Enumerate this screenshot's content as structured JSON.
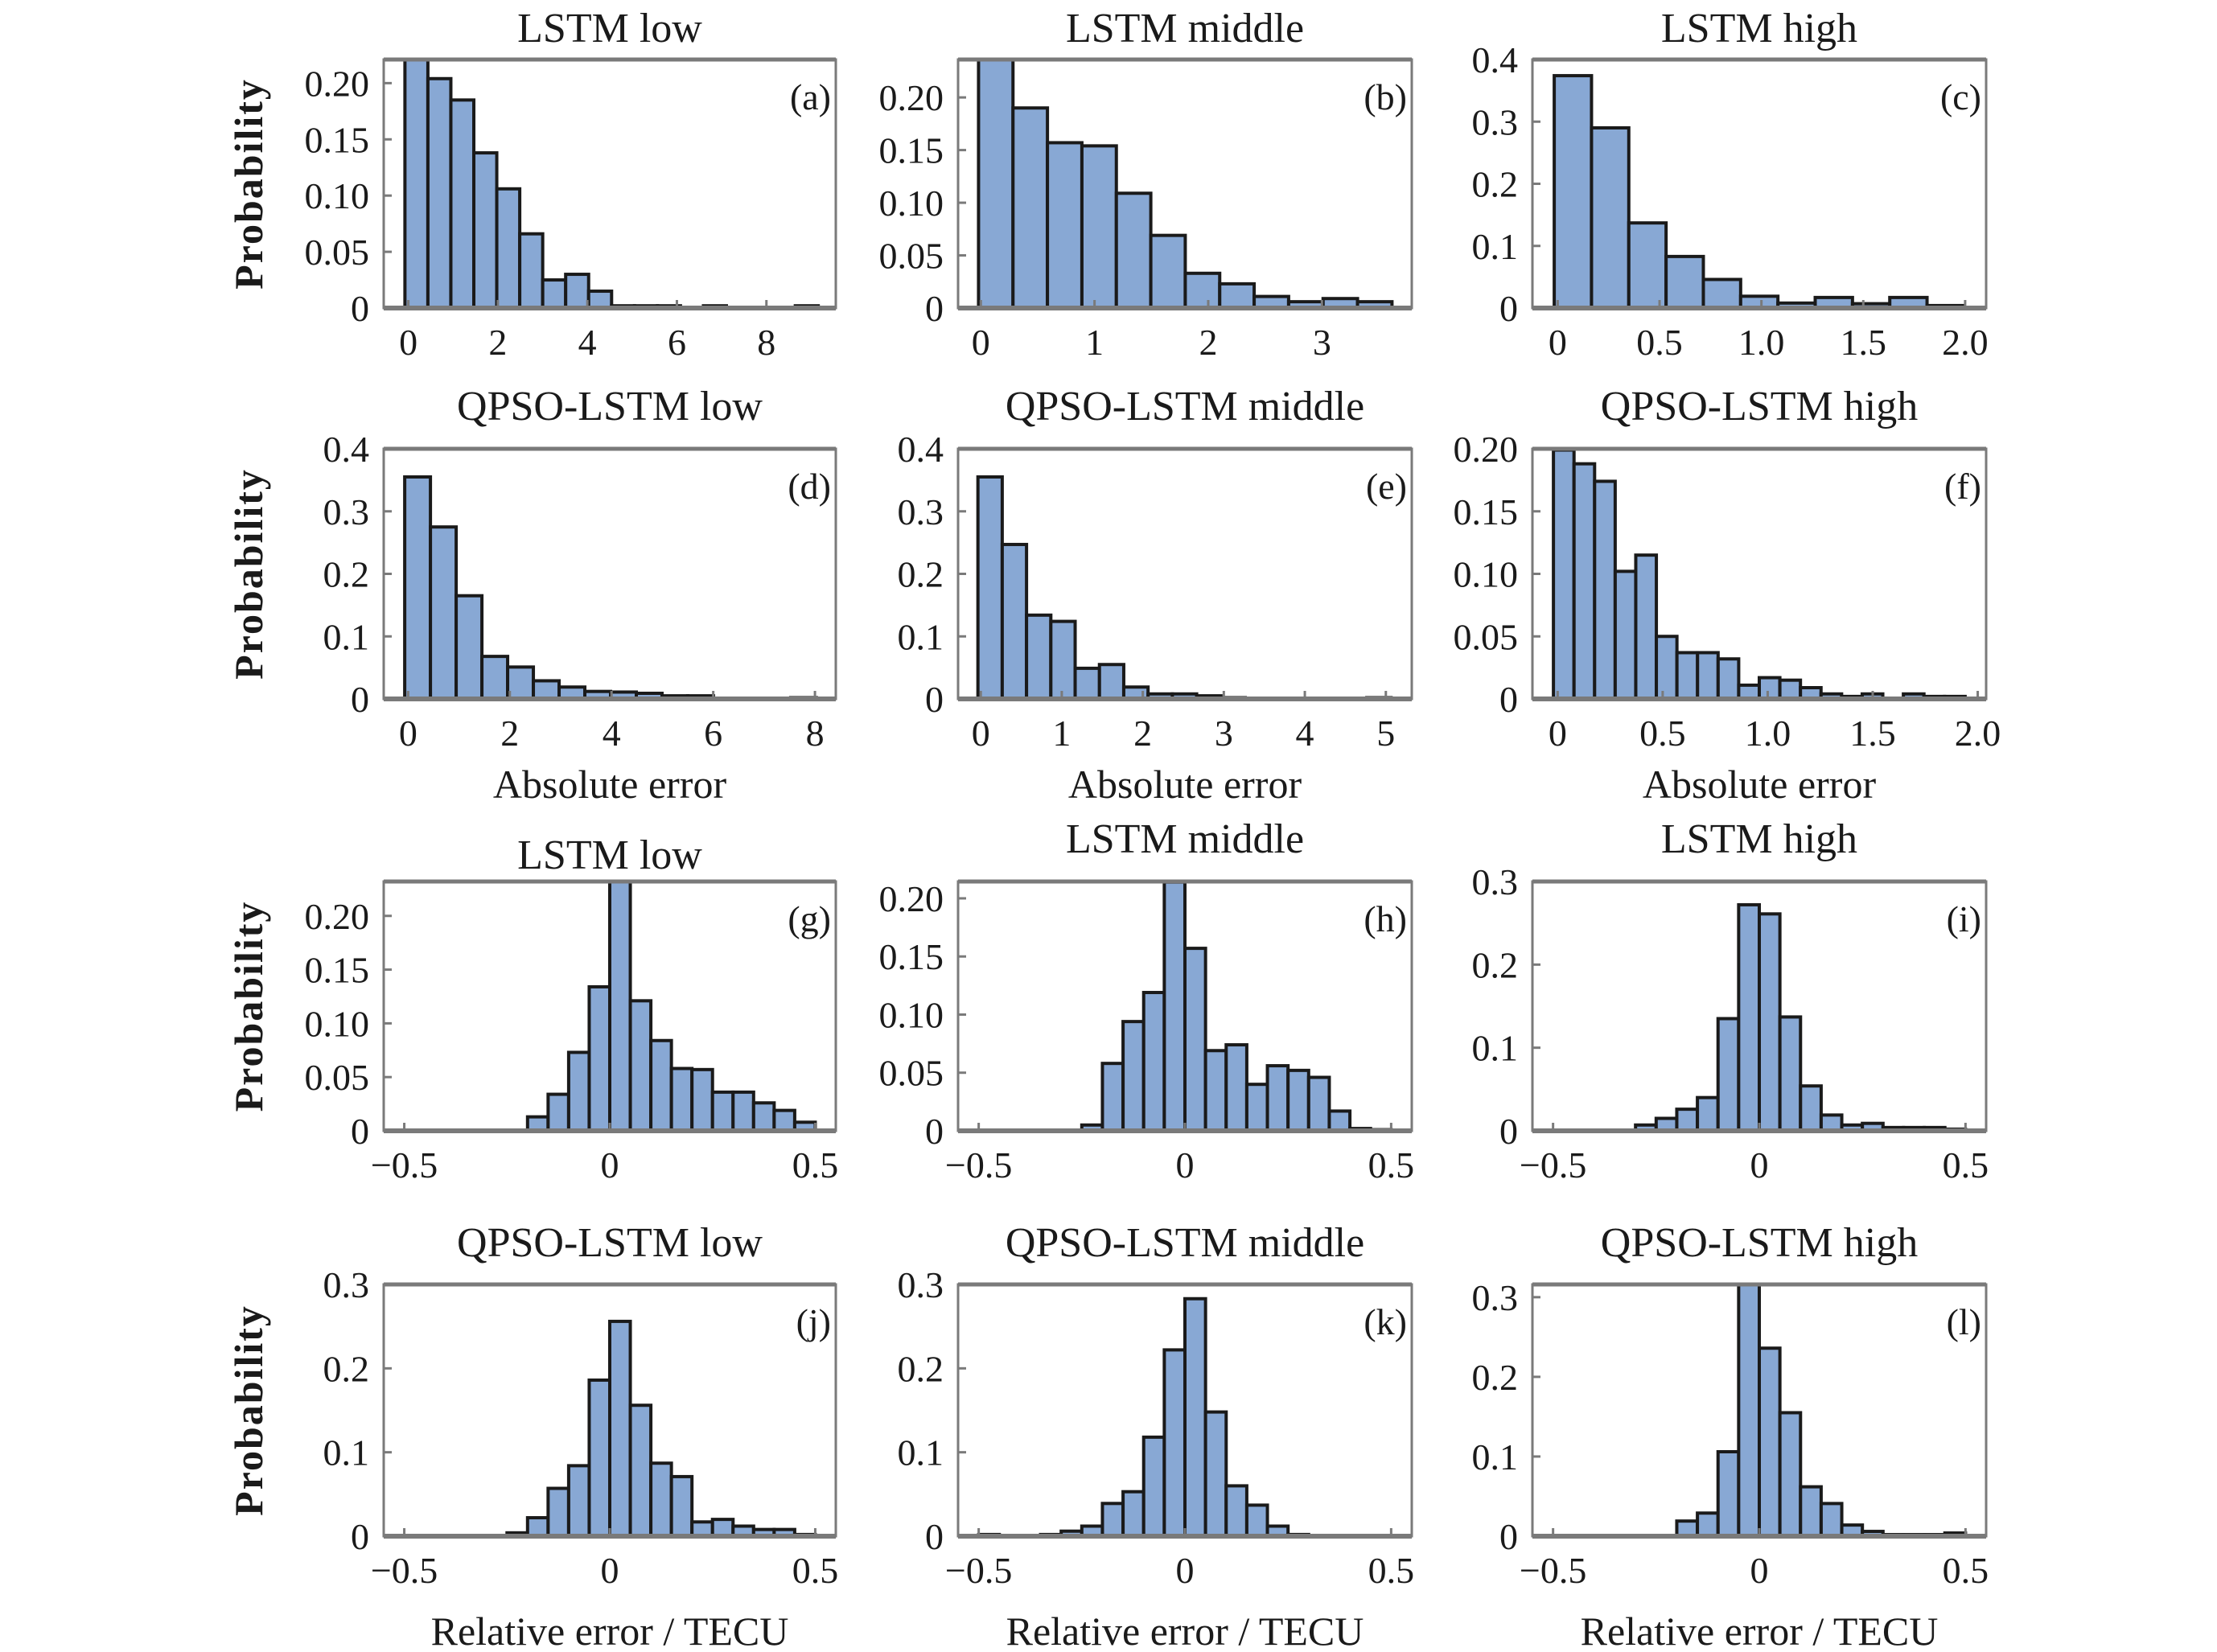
{
  "figure": {
    "bar_fill": "#88a8d4",
    "bar_stroke": "#1a1a1a",
    "axis_color": "#7a7a7a"
  },
  "chart_data": [
    {
      "type": "bar",
      "panel": "(a)",
      "title": "LSTM low",
      "ylabel": "Probability",
      "xlabel": "",
      "bin_start": -0.076,
      "bin_width": 0.513,
      "values": [
        0.221,
        0.204,
        0.185,
        0.138,
        0.106,
        0.066,
        0.025,
        0.03,
        0.015,
        0.002,
        0.002,
        0.002,
        0,
        0.002,
        0,
        0,
        0,
        0.002
      ],
      "xlim": [
        -0.55,
        9.55
      ],
      "ylim": [
        0,
        0.221
      ],
      "xticks": [
        0,
        2,
        4,
        6,
        8
      ],
      "xtick_labels": [
        "0",
        "2",
        "4",
        "6",
        "8"
      ],
      "yticks": [
        0,
        0.05,
        0.1,
        0.15,
        0.2
      ],
      "ytick_labels": [
        "0",
        "0.05",
        "0.10",
        "0.15",
        "0.20"
      ]
    },
    {
      "type": "bar",
      "panel": "(b)",
      "title": "LSTM middle",
      "ylabel": "",
      "xlabel": "",
      "bin_start": -0.02,
      "bin_width": 0.303,
      "values": [
        0.236,
        0.19,
        0.157,
        0.154,
        0.109,
        0.069,
        0.033,
        0.023,
        0.011,
        0.006,
        0.009,
        0.006
      ],
      "xlim": [
        -0.2,
        3.79
      ],
      "ylim": [
        0,
        0.236
      ],
      "xticks": [
        0,
        1,
        2,
        3
      ],
      "xtick_labels": [
        "0",
        "1",
        "2",
        "3"
      ],
      "yticks": [
        0,
        0.05,
        0.1,
        0.15,
        0.2
      ],
      "ytick_labels": [
        "0",
        "0.05",
        "0.10",
        "0.15",
        "0.20"
      ]
    },
    {
      "type": "bar",
      "panel": "(c)",
      "title": "LSTM high",
      "ylabel": "",
      "xlabel": "",
      "bin_start": -0.017,
      "bin_width": 0.183,
      "values": [
        0.374,
        0.29,
        0.137,
        0.083,
        0.046,
        0.019,
        0.008,
        0.017,
        0.007,
        0.017,
        0.004
      ],
      "xlim": [
        -0.124,
        2.103
      ],
      "ylim": [
        0,
        0.4
      ],
      "xticks": [
        0,
        0.5,
        1.0,
        1.5,
        2.0
      ],
      "xtick_labels": [
        "0",
        "0.5",
        "1.0",
        "1.5",
        "2.0"
      ],
      "yticks": [
        0,
        0.1,
        0.2,
        0.3,
        0.4
      ],
      "ytick_labels": [
        "0",
        "0.1",
        "0.2",
        "0.3",
        "0.4"
      ]
    },
    {
      "type": "bar",
      "panel": "(d)",
      "title": "QPSO-LSTM low",
      "ylabel": "Probability",
      "xlabel": "Absolute error",
      "bin_start": -0.067,
      "bin_width": 0.506,
      "values": [
        0.355,
        0.275,
        0.165,
        0.068,
        0.051,
        0.029,
        0.019,
        0.012,
        0.011,
        0.009,
        0.005,
        0.005,
        0.001,
        0.001,
        0.001,
        0.002
      ],
      "xlim": [
        -0.48,
        8.41
      ],
      "ylim": [
        0,
        0.4
      ],
      "xticks": [
        0,
        2,
        4,
        6,
        8
      ],
      "xtick_labels": [
        "0",
        "2",
        "4",
        "6",
        "8"
      ],
      "yticks": [
        0,
        0.1,
        0.2,
        0.3,
        0.4
      ],
      "ytick_labels": [
        "0",
        "0.1",
        "0.2",
        "0.3",
        "0.4"
      ]
    },
    {
      "type": "bar",
      "panel": "(e)",
      "title": "QPSO-LSTM middle",
      "ylabel": "",
      "xlabel": "Absolute error",
      "bin_start": -0.035,
      "bin_width": 0.3,
      "values": [
        0.355,
        0.247,
        0.134,
        0.124,
        0.049,
        0.055,
        0.019,
        0.008,
        0.008,
        0.005,
        0.002,
        0.001,
        0.001,
        0.001,
        0.001,
        0.001,
        0.002
      ],
      "xlim": [
        -0.28,
        5.32
      ],
      "ylim": [
        0,
        0.4
      ],
      "xticks": [
        0,
        1,
        2,
        3,
        4,
        5
      ],
      "xtick_labels": [
        "0",
        "1",
        "2",
        "3",
        "4",
        "5"
      ],
      "yticks": [
        0,
        0.1,
        0.2,
        0.3,
        0.4
      ],
      "ytick_labels": [
        "0",
        "0.1",
        "0.2",
        "0.3",
        "0.4"
      ]
    },
    {
      "type": "bar",
      "panel": "(f)",
      "title": "QPSO-LSTM high",
      "ylabel": "",
      "xlabel": "Absolute error",
      "bin_start": -0.02,
      "bin_width": 0.098,
      "values": [
        0.199,
        0.188,
        0.174,
        0.102,
        0.115,
        0.05,
        0.037,
        0.037,
        0.032,
        0.011,
        0.017,
        0.015,
        0.009,
        0.004,
        0.002,
        0.004,
        0.0005,
        0.004,
        0.002,
        0.002
      ],
      "xlim": [
        -0.12,
        2.04
      ],
      "ylim": [
        0,
        0.2
      ],
      "xticks": [
        0,
        0.5,
        1.0,
        1.5,
        2.0
      ],
      "xtick_labels": [
        "0",
        "0.5",
        "1.0",
        "1.5",
        "2.0"
      ],
      "yticks": [
        0,
        0.05,
        0.1,
        0.15,
        0.2
      ],
      "ytick_labels": [
        "0",
        "0.05",
        "0.10",
        "0.15",
        "0.20"
      ]
    },
    {
      "type": "bar",
      "panel": "(g)",
      "title": "LSTM low",
      "ylabel": "Probability",
      "xlabel": "",
      "bin_start": -0.5,
      "bin_width": 0.05,
      "values": [
        0.0005,
        0.0005,
        0.0005,
        0.0005,
        0.0005,
        0.0005,
        0.013,
        0.034,
        0.073,
        0.134,
        0.232,
        0.121,
        0.084,
        0.058,
        0.057,
        0.036,
        0.036,
        0.026,
        0.019,
        0.008
      ],
      "xlim": [
        -0.55,
        0.55
      ],
      "ylim": [
        0,
        0.232
      ],
      "xticks": [
        -0.5,
        0,
        0.5
      ],
      "xtick_labels": [
        "−0.5",
        "0",
        "0.5"
      ],
      "yticks": [
        0,
        0.05,
        0.1,
        0.15,
        0.2
      ],
      "ytick_labels": [
        "0",
        "0.05",
        "0.10",
        "0.15",
        "0.20"
      ]
    },
    {
      "type": "bar",
      "panel": "(h)",
      "title": "LSTM middle",
      "ylabel": "",
      "xlabel": "",
      "bin_start": -0.5,
      "bin_width": 0.05,
      "values": [
        0.0005,
        0.0005,
        0.0005,
        0.0005,
        0.0005,
        0.005,
        0.058,
        0.094,
        0.119,
        0.214,
        0.157,
        0.069,
        0.074,
        0.04,
        0.056,
        0.052,
        0.046,
        0.017,
        0.002,
        0.001
      ],
      "xlim": [
        -0.55,
        0.55
      ],
      "ylim": [
        0,
        0.2145
      ],
      "xticks": [
        -0.5,
        0,
        0.5
      ],
      "xtick_labels": [
        "−0.5",
        "0",
        "0.5"
      ],
      "yticks": [
        0,
        0.05,
        0.1,
        0.15,
        0.2
      ],
      "ytick_labels": [
        "0",
        "0.05",
        "0.10",
        "0.15",
        "0.20"
      ]
    },
    {
      "type": "bar",
      "panel": "(i)",
      "title": "LSTM high",
      "ylabel": "",
      "xlabel": "",
      "bin_start": -0.5,
      "bin_width": 0.05,
      "values": [
        0.0005,
        0.0005,
        0.0005,
        0.0005,
        0.007,
        0.015,
        0.026,
        0.04,
        0.135,
        0.272,
        0.261,
        0.137,
        0.054,
        0.019,
        0.007,
        0.009,
        0.004,
        0.004,
        0.004,
        0.002
      ],
      "xlim": [
        -0.55,
        0.55
      ],
      "ylim": [
        0,
        0.3
      ],
      "xticks": [
        -0.5,
        0,
        0.5
      ],
      "xtick_labels": [
        "−0.5",
        "0",
        "0.5"
      ],
      "yticks": [
        0,
        0.1,
        0.2,
        0.3
      ],
      "ytick_labels": [
        "0",
        "0.1",
        "0.2",
        "0.3"
      ]
    },
    {
      "type": "bar",
      "panel": "(j)",
      "title": "QPSO-LSTM low",
      "ylabel": "Probability",
      "xlabel": "Relative error / TECU",
      "bin_start": -0.5,
      "bin_width": 0.05,
      "values": [
        0.0005,
        0.0005,
        0.0005,
        0.0005,
        0.0005,
        0.004,
        0.022,
        0.057,
        0.084,
        0.186,
        0.256,
        0.156,
        0.087,
        0.071,
        0.017,
        0.02,
        0.012,
        0.008,
        0.008,
        0.002
      ],
      "xlim": [
        -0.55,
        0.55
      ],
      "ylim": [
        0,
        0.3
      ],
      "xticks": [
        -0.5,
        0,
        0.5
      ],
      "xtick_labels": [
        "−0.5",
        "0",
        "0.5"
      ],
      "yticks": [
        0,
        0.1,
        0.2,
        0.3
      ],
      "ytick_labels": [
        "0",
        "0.1",
        "0.2",
        "0.3"
      ]
    },
    {
      "type": "bar",
      "panel": "(k)",
      "title": "QPSO-LSTM middle",
      "ylabel": "",
      "xlabel": "Relative error / TECU",
      "bin_start": -0.5,
      "bin_width": 0.05,
      "values": [
        0.002,
        0.0005,
        0.0005,
        0.002,
        0.006,
        0.012,
        0.039,
        0.053,
        0.118,
        0.222,
        0.283,
        0.148,
        0.06,
        0.037,
        0.012,
        0.002,
        0.0005,
        0.0005,
        0.0005,
        0.0005
      ],
      "xlim": [
        -0.55,
        0.55
      ],
      "ylim": [
        0,
        0.3
      ],
      "xticks": [
        -0.5,
        0,
        0.5
      ],
      "xtick_labels": [
        "−0.5",
        "0",
        "0.5"
      ],
      "yticks": [
        0,
        0.1,
        0.2,
        0.3
      ],
      "ytick_labels": [
        "0",
        "0.1",
        "0.2",
        "0.3"
      ]
    },
    {
      "type": "bar",
      "panel": "(l)",
      "title": "QPSO-LSTM high",
      "ylabel": "",
      "xlabel": "Relative error / TECU",
      "bin_start": -0.5,
      "bin_width": 0.05,
      "values": [
        0.0005,
        0.0005,
        0.0005,
        0.0005,
        0.0005,
        0.0005,
        0.019,
        0.029,
        0.106,
        0.316,
        0.236,
        0.155,
        0.062,
        0.041,
        0.014,
        0.006,
        0.002,
        0.002,
        0.002,
        0.004
      ],
      "xlim": [
        -0.55,
        0.55
      ],
      "ylim": [
        0,
        0.316
      ],
      "xticks": [
        -0.5,
        0,
        0.5
      ],
      "xtick_labels": [
        "−0.5",
        "0",
        "0.5"
      ],
      "yticks": [
        0,
        0.1,
        0.2,
        0.3
      ],
      "ytick_labels": [
        "0",
        "0.1",
        "0.2",
        "0.3"
      ]
    }
  ]
}
